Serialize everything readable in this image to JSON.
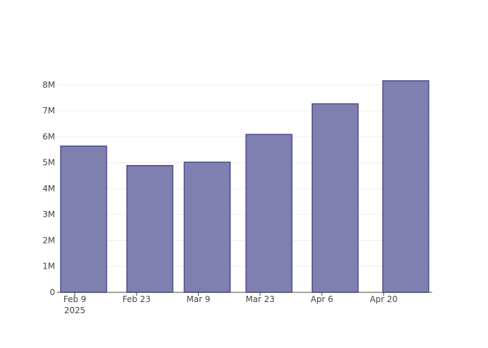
{
  "chart_data": {
    "type": "bar",
    "x": [
      "2025-02-11",
      "2025-02-26",
      "2025-03-11",
      "2025-03-25",
      "2025-04-09",
      "2025-04-25"
    ],
    "values": [
      5640000,
      4890000,
      5020000,
      6090000,
      7270000,
      8160000
    ],
    "bar_width_days": 10.4,
    "color": "#7f7fb0",
    "line_color": "#4b4b8e",
    "xlim": [
      "2025-02-05",
      "2025-05-01"
    ],
    "xticks": [
      {
        "value": "2025-02-09",
        "label": "Feb 9\n2025"
      },
      {
        "value": "2025-02-23",
        "label": "Feb 23"
      },
      {
        "value": "2025-03-09",
        "label": "Mar 9"
      },
      {
        "value": "2025-03-23",
        "label": "Mar 23"
      },
      {
        "value": "2025-04-06",
        "label": "Apr 6"
      },
      {
        "value": "2025-04-20",
        "label": "Apr 20"
      }
    ],
    "ylim": [
      0,
      8590000
    ],
    "yticks": [
      0,
      {
        "value": 1000000,
        "label": "1M"
      },
      {
        "value": 2000000,
        "label": "2M"
      },
      {
        "value": 3000000,
        "label": "3M"
      },
      {
        "value": 4000000,
        "label": "4M"
      },
      {
        "value": 5000000,
        "label": "5M"
      },
      {
        "value": 6000000,
        "label": "6M"
      },
      {
        "value": 7000000,
        "label": "7M"
      },
      {
        "value": 8000000,
        "label": "8M"
      }
    ],
    "grid": true
  }
}
